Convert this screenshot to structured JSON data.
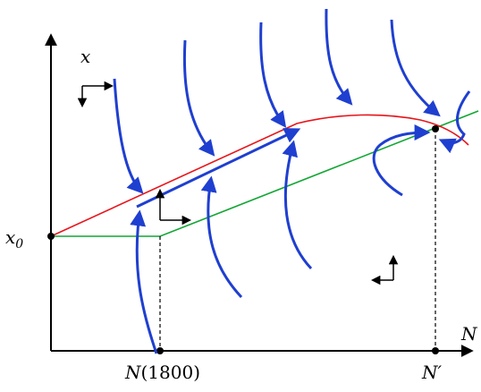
{
  "labels": {
    "y_axis": "x",
    "x_axis": "N",
    "x0_base": "x",
    "x0_sub": "0",
    "n1800_italic": "N",
    "n1800_paren": "(1800)",
    "n_prime": "N′"
  },
  "colors": {
    "axes": "#000000",
    "red_curve": "#e8141b",
    "green_line": "#12a635",
    "flow_arrows": "#1f3fd0",
    "dashed": "#000000",
    "points": "#000000"
  }
}
